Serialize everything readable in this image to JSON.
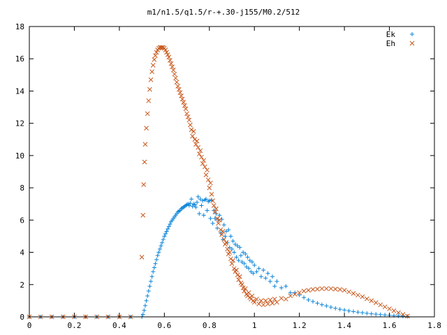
{
  "chart_data": {
    "type": "scatter",
    "title": "m1/n1.5/q1.5/r-+.30-j155/M0.2/512",
    "xlabel": "",
    "ylabel": "",
    "xlim": [
      0,
      1.8
    ],
    "ylim": [
      0,
      18
    ],
    "x_ticks": [
      0,
      0.2,
      0.4,
      0.6,
      0.8,
      1,
      1.2,
      1.4,
      1.6,
      1.8
    ],
    "y_ticks": [
      0,
      2,
      4,
      6,
      8,
      10,
      12,
      14,
      16,
      18
    ],
    "x_tick_labels": [
      "0",
      "0.2",
      "0.4",
      "0.6",
      "0.8",
      "1",
      "1.2",
      "1.4",
      "1.6",
      "1.8"
    ],
    "y_tick_labels": [
      "0",
      "2",
      "4",
      "6",
      "8",
      "10",
      "12",
      "14",
      "16",
      "18"
    ],
    "grid": false,
    "legend_position": "top-right",
    "series": [
      {
        "name": "Ek",
        "marker": "plus",
        "color": "#0b84d9",
        "points": [
          [
            0.0,
            0.0
          ],
          [
            0.05,
            0.0
          ],
          [
            0.1,
            0.0
          ],
          [
            0.15,
            0.0
          ],
          [
            0.2,
            0.0
          ],
          [
            0.25,
            0.0
          ],
          [
            0.3,
            0.0
          ],
          [
            0.35,
            0.0
          ],
          [
            0.4,
            0.0
          ],
          [
            0.45,
            0.0
          ],
          [
            0.5,
            0.0
          ],
          [
            0.505,
            0.15
          ],
          [
            0.51,
            0.4
          ],
          [
            0.515,
            0.7
          ],
          [
            0.52,
            1.0
          ],
          [
            0.525,
            1.3
          ],
          [
            0.53,
            1.6
          ],
          [
            0.535,
            1.9
          ],
          [
            0.54,
            2.2
          ],
          [
            0.545,
            2.5
          ],
          [
            0.55,
            2.8
          ],
          [
            0.555,
            3.05
          ],
          [
            0.56,
            3.3
          ],
          [
            0.565,
            3.55
          ],
          [
            0.57,
            3.8
          ],
          [
            0.575,
            4.0
          ],
          [
            0.58,
            4.2
          ],
          [
            0.585,
            4.4
          ],
          [
            0.59,
            4.6
          ],
          [
            0.595,
            4.8
          ],
          [
            0.6,
            5.0
          ],
          [
            0.605,
            5.15
          ],
          [
            0.61,
            5.3
          ],
          [
            0.615,
            5.45
          ],
          [
            0.62,
            5.6
          ],
          [
            0.625,
            5.75
          ],
          [
            0.63,
            5.9
          ],
          [
            0.635,
            6.0
          ],
          [
            0.64,
            6.1
          ],
          [
            0.645,
            6.2
          ],
          [
            0.65,
            6.3
          ],
          [
            0.655,
            6.4
          ],
          [
            0.66,
            6.5
          ],
          [
            0.665,
            6.55
          ],
          [
            0.67,
            6.6
          ],
          [
            0.675,
            6.7
          ],
          [
            0.68,
            6.75
          ],
          [
            0.685,
            6.8
          ],
          [
            0.69,
            6.85
          ],
          [
            0.695,
            6.9
          ],
          [
            0.7,
            6.95
          ],
          [
            0.705,
            7.0
          ],
          [
            0.71,
            6.9
          ],
          [
            0.715,
            7.05
          ],
          [
            0.72,
            7.3
          ],
          [
            0.725,
            6.85
          ],
          [
            0.73,
            7.0
          ],
          [
            0.735,
            6.95
          ],
          [
            0.74,
            6.8
          ],
          [
            0.745,
            7.1
          ],
          [
            0.75,
            7.45
          ],
          [
            0.755,
            6.4
          ],
          [
            0.76,
            7.3
          ],
          [
            0.765,
            6.9
          ],
          [
            0.77,
            7.2
          ],
          [
            0.775,
            6.3
          ],
          [
            0.78,
            7.25
          ],
          [
            0.785,
            7.3
          ],
          [
            0.79,
            6.6
          ],
          [
            0.795,
            7.15
          ],
          [
            0.8,
            7.2
          ],
          [
            0.805,
            6.1
          ],
          [
            0.81,
            7.25
          ],
          [
            0.815,
            5.8
          ],
          [
            0.82,
            6.6
          ],
          [
            0.825,
            6.1
          ],
          [
            0.83,
            6.4
          ],
          [
            0.835,
            5.5
          ],
          [
            0.84,
            6.0
          ],
          [
            0.845,
            6.3
          ],
          [
            0.85,
            5.2
          ],
          [
            0.855,
            6.05
          ],
          [
            0.86,
            4.8
          ],
          [
            0.865,
            5.7
          ],
          [
            0.87,
            5.0
          ],
          [
            0.875,
            5.3
          ],
          [
            0.88,
            4.6
          ],
          [
            0.885,
            5.4
          ],
          [
            0.89,
            4.3
          ],
          [
            0.895,
            5.0
          ],
          [
            0.9,
            4.2
          ],
          [
            0.905,
            4.7
          ],
          [
            0.91,
            4.0
          ],
          [
            0.915,
            4.5
          ],
          [
            0.92,
            3.7
          ],
          [
            0.925,
            4.4
          ],
          [
            0.93,
            3.5
          ],
          [
            0.935,
            4.3
          ],
          [
            0.94,
            3.8
          ],
          [
            0.945,
            3.4
          ],
          [
            0.95,
            4.0
          ],
          [
            0.955,
            3.3
          ],
          [
            0.96,
            3.9
          ],
          [
            0.965,
            3.1
          ],
          [
            0.97,
            3.7
          ],
          [
            0.975,
            3.0
          ],
          [
            0.98,
            3.5
          ],
          [
            0.985,
            2.8
          ],
          [
            0.99,
            3.4
          ],
          [
            0.995,
            2.7
          ],
          [
            1.0,
            3.2
          ],
          [
            1.01,
            2.8
          ],
          [
            1.02,
            3.0
          ],
          [
            1.03,
            2.5
          ],
          [
            1.04,
            2.9
          ],
          [
            1.05,
            2.4
          ],
          [
            1.06,
            2.7
          ],
          [
            1.07,
            2.2
          ],
          [
            1.08,
            2.5
          ],
          [
            1.09,
            1.9
          ],
          [
            1.1,
            2.2
          ],
          [
            1.12,
            1.8
          ],
          [
            1.14,
            1.9
          ],
          [
            1.16,
            1.5
          ],
          [
            1.18,
            1.5
          ],
          [
            1.2,
            1.35
          ],
          [
            1.22,
            1.2
          ],
          [
            1.24,
            1.05
          ],
          [
            1.26,
            0.95
          ],
          [
            1.28,
            0.85
          ],
          [
            1.3,
            0.75
          ],
          [
            1.32,
            0.68
          ],
          [
            1.34,
            0.6
          ],
          [
            1.36,
            0.53
          ],
          [
            1.38,
            0.47
          ],
          [
            1.4,
            0.42
          ],
          [
            1.42,
            0.37
          ],
          [
            1.44,
            0.33
          ],
          [
            1.46,
            0.29
          ],
          [
            1.48,
            0.26
          ],
          [
            1.5,
            0.22
          ],
          [
            1.52,
            0.19
          ],
          [
            1.54,
            0.17
          ],
          [
            1.56,
            0.14
          ],
          [
            1.58,
            0.12
          ],
          [
            1.6,
            0.1
          ],
          [
            1.62,
            0.08
          ],
          [
            1.64,
            0.06
          ],
          [
            1.66,
            0.04
          ],
          [
            1.68,
            0.02
          ]
        ]
      },
      {
        "name": "Eh",
        "marker": "cross",
        "color": "#c8561a",
        "points": [
          [
            0.0,
            0.0
          ],
          [
            0.05,
            0.0
          ],
          [
            0.1,
            0.0
          ],
          [
            0.15,
            0.0
          ],
          [
            0.2,
            0.0
          ],
          [
            0.25,
            0.0
          ],
          [
            0.3,
            0.0
          ],
          [
            0.35,
            0.0
          ],
          [
            0.4,
            0.0
          ],
          [
            0.45,
            0.0
          ],
          [
            0.5,
            3.7
          ],
          [
            0.505,
            6.3
          ],
          [
            0.508,
            8.2
          ],
          [
            0.512,
            9.6
          ],
          [
            0.515,
            10.7
          ],
          [
            0.52,
            11.7
          ],
          [
            0.525,
            12.6
          ],
          [
            0.53,
            13.4
          ],
          [
            0.535,
            14.1
          ],
          [
            0.54,
            14.7
          ],
          [
            0.545,
            15.2
          ],
          [
            0.55,
            15.6
          ],
          [
            0.555,
            15.95
          ],
          [
            0.56,
            16.2
          ],
          [
            0.565,
            16.4
          ],
          [
            0.57,
            16.55
          ],
          [
            0.575,
            16.65
          ],
          [
            0.58,
            16.7
          ],
          [
            0.585,
            16.7
          ],
          [
            0.59,
            16.7
          ],
          [
            0.595,
            16.7
          ],
          [
            0.6,
            16.65
          ],
          [
            0.605,
            16.55
          ],
          [
            0.61,
            16.4
          ],
          [
            0.615,
            16.25
          ],
          [
            0.62,
            16.1
          ],
          [
            0.625,
            15.9
          ],
          [
            0.63,
            15.7
          ],
          [
            0.635,
            15.5
          ],
          [
            0.64,
            15.3
          ],
          [
            0.645,
            15.05
          ],
          [
            0.65,
            14.8
          ],
          [
            0.655,
            14.55
          ],
          [
            0.66,
            14.3
          ],
          [
            0.665,
            14.1
          ],
          [
            0.67,
            13.9
          ],
          [
            0.675,
            13.7
          ],
          [
            0.68,
            13.5
          ],
          [
            0.685,
            13.3
          ],
          [
            0.69,
            13.1
          ],
          [
            0.695,
            12.9
          ],
          [
            0.7,
            12.6
          ],
          [
            0.705,
            12.4
          ],
          [
            0.71,
            12.2
          ],
          [
            0.715,
            11.9
          ],
          [
            0.72,
            11.6
          ],
          [
            0.725,
            11.2
          ],
          [
            0.73,
            11.5
          ],
          [
            0.735,
            11.0
          ],
          [
            0.74,
            10.7
          ],
          [
            0.745,
            10.9
          ],
          [
            0.75,
            10.5
          ],
          [
            0.755,
            10.1
          ],
          [
            0.76,
            10.3
          ],
          [
            0.765,
            9.9
          ],
          [
            0.77,
            9.5
          ],
          [
            0.775,
            9.7
          ],
          [
            0.78,
            9.3
          ],
          [
            0.785,
            8.8
          ],
          [
            0.79,
            9.1
          ],
          [
            0.795,
            8.5
          ],
          [
            0.8,
            8.0
          ],
          [
            0.805,
            8.3
          ],
          [
            0.81,
            7.6
          ],
          [
            0.815,
            7.2
          ],
          [
            0.82,
            6.9
          ],
          [
            0.825,
            6.5
          ],
          [
            0.83,
            6.7
          ],
          [
            0.835,
            6.1
          ],
          [
            0.84,
            5.8
          ],
          [
            0.845,
            6.0
          ],
          [
            0.85,
            5.4
          ],
          [
            0.855,
            5.1
          ],
          [
            0.86,
            5.3
          ],
          [
            0.865,
            4.8
          ],
          [
            0.87,
            4.5
          ],
          [
            0.875,
            4.6
          ],
          [
            0.88,
            4.2
          ],
          [
            0.885,
            3.9
          ],
          [
            0.89,
            4.0
          ],
          [
            0.895,
            3.6
          ],
          [
            0.9,
            3.3
          ],
          [
            0.905,
            3.5
          ],
          [
            0.91,
            3.0
          ],
          [
            0.915,
            2.8
          ],
          [
            0.92,
            2.9
          ],
          [
            0.925,
            2.6
          ],
          [
            0.93,
            2.3
          ],
          [
            0.935,
            2.5
          ],
          [
            0.94,
            2.1
          ],
          [
            0.945,
            2.0
          ],
          [
            0.95,
            1.8
          ],
          [
            0.955,
            1.6
          ],
          [
            0.96,
            1.75
          ],
          [
            0.965,
            1.4
          ],
          [
            0.97,
            1.3
          ],
          [
            0.975,
            1.5
          ],
          [
            0.98,
            1.2
          ],
          [
            0.985,
            1.1
          ],
          [
            0.99,
            1.3
          ],
          [
            0.995,
            1.0
          ],
          [
            1.0,
            0.9
          ],
          [
            1.01,
            1.1
          ],
          [
            1.02,
            0.8
          ],
          [
            1.03,
            1.0
          ],
          [
            1.04,
            0.75
          ],
          [
            1.05,
            1.0
          ],
          [
            1.06,
            0.8
          ],
          [
            1.07,
            1.05
          ],
          [
            1.08,
            0.85
          ],
          [
            1.09,
            1.1
          ],
          [
            1.1,
            0.9
          ],
          [
            1.12,
            1.15
          ],
          [
            1.14,
            1.1
          ],
          [
            1.16,
            1.3
          ],
          [
            1.18,
            1.4
          ],
          [
            1.2,
            1.5
          ],
          [
            1.22,
            1.6
          ],
          [
            1.24,
            1.65
          ],
          [
            1.26,
            1.7
          ],
          [
            1.28,
            1.72
          ],
          [
            1.3,
            1.75
          ],
          [
            1.32,
            1.75
          ],
          [
            1.34,
            1.75
          ],
          [
            1.36,
            1.72
          ],
          [
            1.38,
            1.7
          ],
          [
            1.4,
            1.65
          ],
          [
            1.42,
            1.55
          ],
          [
            1.44,
            1.45
          ],
          [
            1.46,
            1.35
          ],
          [
            1.48,
            1.25
          ],
          [
            1.5,
            1.12
          ],
          [
            1.52,
            1.0
          ],
          [
            1.54,
            0.88
          ],
          [
            1.56,
            0.75
          ],
          [
            1.58,
            0.62
          ],
          [
            1.6,
            0.5
          ],
          [
            1.62,
            0.38
          ],
          [
            1.64,
            0.26
          ],
          [
            1.66,
            0.15
          ],
          [
            1.68,
            0.05
          ]
        ]
      }
    ]
  }
}
